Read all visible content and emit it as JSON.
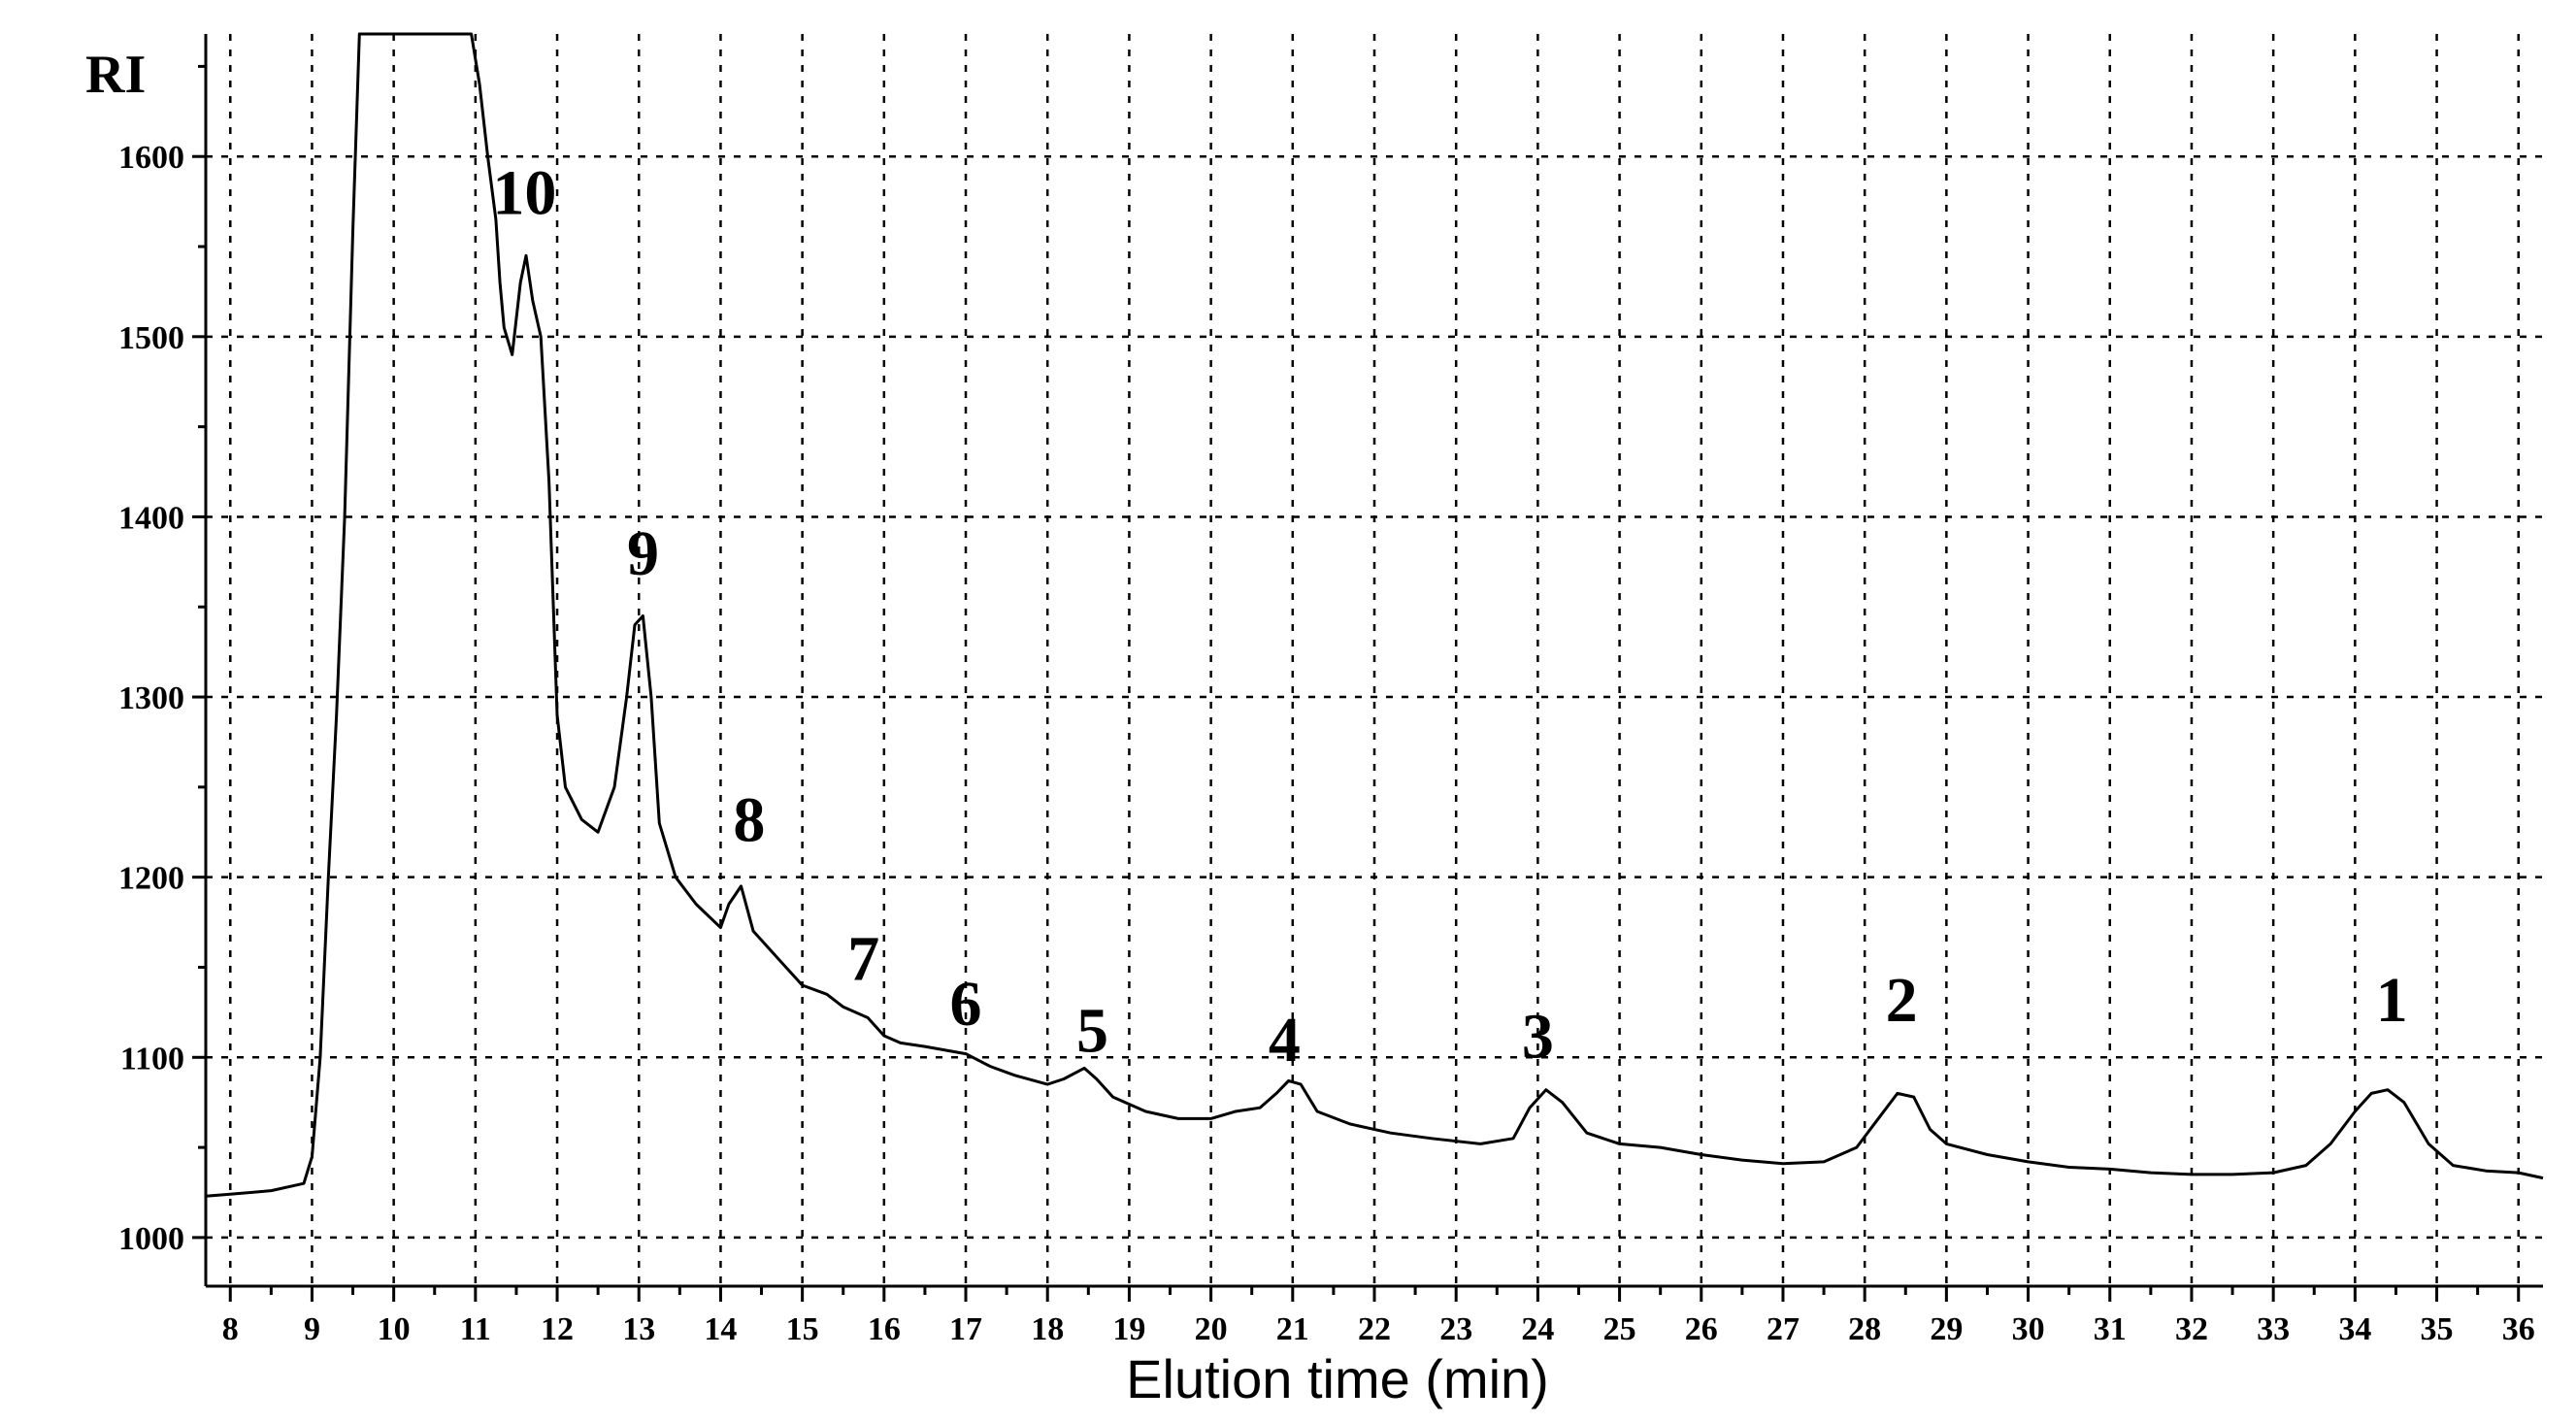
{
  "chart_data": {
    "type": "line",
    "title": "",
    "xlabel": "Elution time (min)",
    "ylabel": "RI",
    "xlim": [
      7.7,
      36.3
    ],
    "ylim": [
      973,
      1668
    ],
    "grid": true,
    "x_ticks": [
      8,
      9,
      10,
      11,
      12,
      13,
      14,
      15,
      16,
      17,
      18,
      19,
      20,
      21,
      22,
      23,
      24,
      25,
      26,
      27,
      28,
      29,
      30,
      31,
      32,
      33,
      34,
      35,
      36
    ],
    "x_tick_labels": [
      "8",
      "9",
      "10",
      "11",
      "12",
      "13",
      "14",
      "15",
      "16",
      "17",
      "18",
      "19",
      "20",
      "21",
      "22",
      "23",
      "24",
      "25",
      "26",
      "27",
      "28",
      "29",
      "30",
      "31",
      "32",
      "33",
      "34",
      "35",
      "36"
    ],
    "y_ticks": [
      1000,
      1100,
      1200,
      1300,
      1400,
      1500,
      1600
    ],
    "y_tick_labels": [
      "1000",
      "1100",
      "1200",
      "1300",
      "1400",
      "1500",
      "1600"
    ],
    "series": [
      {
        "x": [
          7.7,
          8.0,
          8.5,
          8.9,
          9.0,
          9.1,
          9.2,
          9.3,
          9.4,
          9.5,
          9.58,
          10.95,
          11.05,
          11.15,
          11.25,
          11.3,
          11.35,
          11.45,
          11.55,
          11.62,
          11.7,
          11.8,
          11.9,
          12.0,
          12.1,
          12.3,
          12.5,
          12.7,
          12.85,
          12.95,
          13.05,
          13.15,
          13.25,
          13.45,
          13.7,
          14.0,
          14.1,
          14.25,
          14.4,
          14.7,
          15.0,
          15.3,
          15.5,
          15.8,
          16.0,
          16.2,
          16.5,
          17.0,
          17.3,
          17.6,
          18.0,
          18.2,
          18.45,
          18.6,
          18.8,
          19.2,
          19.6,
          20.0,
          20.3,
          20.6,
          20.8,
          20.95,
          21.1,
          21.3,
          21.7,
          22.2,
          22.7,
          23.3,
          23.7,
          23.9,
          24.1,
          24.3,
          24.6,
          25.0,
          25.5,
          26.0,
          26.5,
          27.0,
          27.5,
          27.9,
          28.2,
          28.4,
          28.6,
          28.8,
          29.0,
          29.5,
          30.0,
          30.5,
          31.0,
          31.5,
          32.0,
          32.5,
          33.0,
          33.4,
          33.7,
          34.0,
          34.2,
          34.4,
          34.6,
          34.9,
          35.2,
          35.6,
          36.0,
          36.3
        ],
        "y": [
          1023,
          1024,
          1026,
          1030,
          1045,
          1100,
          1200,
          1290,
          1400,
          1560,
          1668,
          1668,
          1640,
          1600,
          1565,
          1530,
          1505,
          1490,
          1530,
          1545,
          1520,
          1500,
          1420,
          1290,
          1250,
          1232,
          1225,
          1250,
          1300,
          1340,
          1345,
          1300,
          1230,
          1200,
          1185,
          1172,
          1185,
          1195,
          1170,
          1155,
          1140,
          1135,
          1128,
          1122,
          1112,
          1108,
          1106,
          1102,
          1095,
          1090,
          1085,
          1088,
          1094,
          1088,
          1078,
          1070,
          1066,
          1066,
          1070,
          1072,
          1080,
          1087,
          1085,
          1070,
          1063,
          1058,
          1055,
          1052,
          1055,
          1072,
          1082,
          1075,
          1058,
          1052,
          1050,
          1046,
          1043,
          1041,
          1042,
          1050,
          1068,
          1080,
          1078,
          1060,
          1052,
          1046,
          1042,
          1039,
          1038,
          1036,
          1035,
          1035,
          1036,
          1040,
          1052,
          1070,
          1080,
          1082,
          1075,
          1052,
          1040,
          1037,
          1036,
          1033
        ]
      }
    ],
    "peak_labels": [
      {
        "text": "10",
        "x": 11.6,
        "y": 1568
      },
      {
        "text": "9",
        "x": 13.05,
        "y": 1368
      },
      {
        "text": "8",
        "x": 14.35,
        "y": 1220
      },
      {
        "text": "7",
        "x": 15.75,
        "y": 1143
      },
      {
        "text": "6",
        "x": 17.0,
        "y": 1118
      },
      {
        "text": "5",
        "x": 18.55,
        "y": 1103
      },
      {
        "text": "4",
        "x": 20.9,
        "y": 1098
      },
      {
        "text": "3",
        "x": 24.0,
        "y": 1100
      },
      {
        "text": "2",
        "x": 28.45,
        "y": 1120
      },
      {
        "text": "1",
        "x": 34.45,
        "y": 1120
      }
    ]
  }
}
